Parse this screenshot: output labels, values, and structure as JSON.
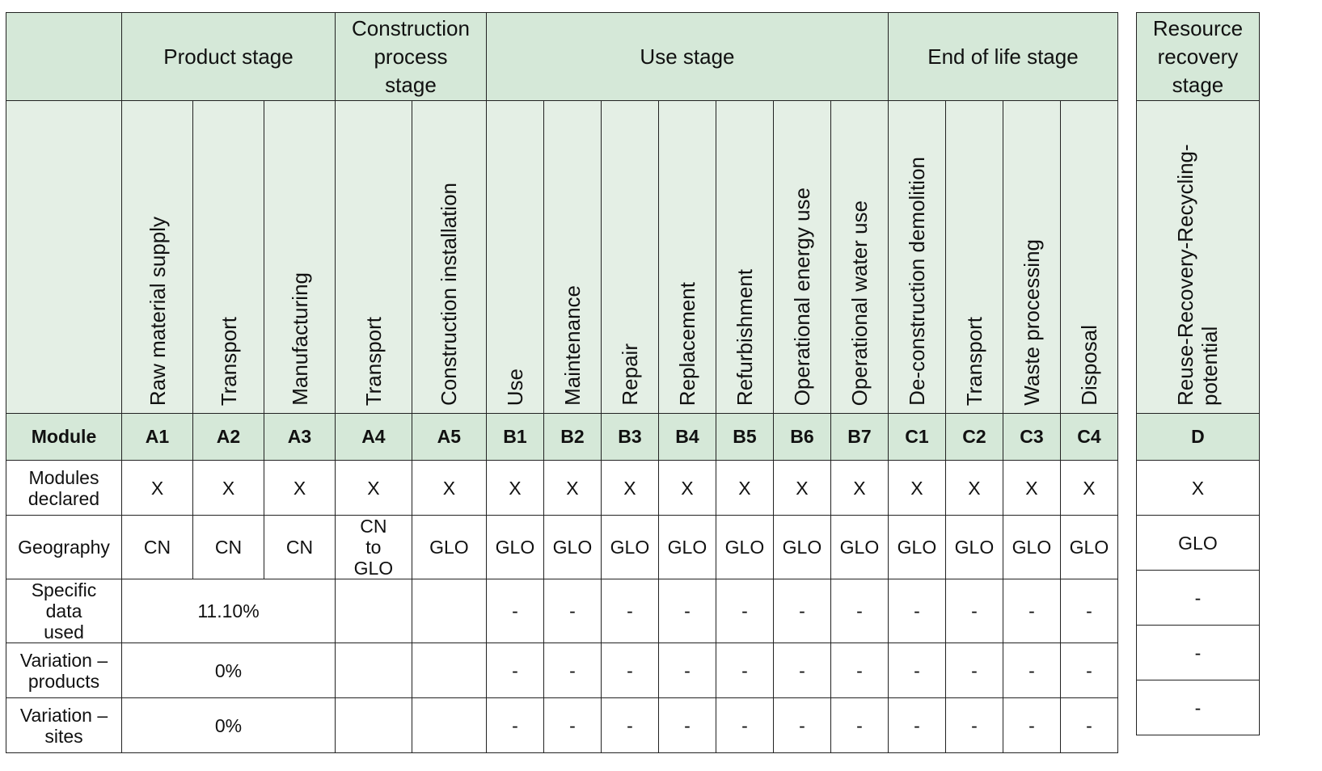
{
  "stages": {
    "product": "Product stage",
    "construction": "Construction process stage",
    "use": "Use stage",
    "end_of_life": "End of life stage",
    "resource_recovery": "Resource recovery stage"
  },
  "column_names": {
    "a1": "Raw material supply",
    "a2": "Transport",
    "a3": "Manufacturing",
    "a4": "Transport",
    "a5": "Construction installation",
    "b1": "Use",
    "b2": "Maintenance",
    "b3": "Repair",
    "b4": "Replacement",
    "b5": "Refurbishment",
    "b6": "Operational energy use",
    "b7": "Operational water use",
    "c1": "De-construction demolition",
    "c2": "Transport",
    "c3": "Waste processing",
    "c4": "Disposal",
    "d": "Reuse-Recovery-Recycling-potential"
  },
  "row_labels": {
    "module": "Module",
    "declared": "Modules declared",
    "geography": "Geography",
    "specific": "Specific data used",
    "var_products": "Variation – products",
    "var_sites": "Variation – sites"
  },
  "modules": {
    "a1": "A1",
    "a2": "A2",
    "a3": "A3",
    "a4": "A4",
    "a5": "A5",
    "b1": "B1",
    "b2": "B2",
    "b3": "B3",
    "b4": "B4",
    "b5": "B5",
    "b6": "B6",
    "b7": "B7",
    "c1": "C1",
    "c2": "C2",
    "c3": "C3",
    "c4": "C4",
    "d": "D"
  },
  "declared": {
    "a1": "X",
    "a2": "X",
    "a3": "X",
    "a4": "X",
    "a5": "X",
    "b1": "X",
    "b2": "X",
    "b3": "X",
    "b4": "X",
    "b5": "X",
    "b6": "X",
    "b7": "X",
    "c1": "X",
    "c2": "X",
    "c3": "X",
    "c4": "X",
    "d": "X"
  },
  "geography": {
    "a1": "CN",
    "a2": "CN",
    "a3": "CN",
    "a4": "CN to GLO",
    "a5": "GLO",
    "b1": "GLO",
    "b2": "GLO",
    "b3": "GLO",
    "b4": "GLO",
    "b5": "GLO",
    "b6": "GLO",
    "b7": "GLO",
    "c1": "GLO",
    "c2": "GLO",
    "c3": "GLO",
    "c4": "GLO",
    "d": "GLO"
  },
  "specific_data": {
    "a1_a3": "11.10%",
    "b1": "-",
    "b2": "-",
    "b3": "-",
    "b4": "-",
    "b5": "-",
    "b6": "-",
    "b7": "-",
    "c1": "-",
    "c2": "-",
    "c3": "-",
    "c4": "-",
    "d": "-"
  },
  "variation_products": {
    "a1_a3": "0%",
    "b1": "-",
    "b2": "-",
    "b3": "-",
    "b4": "-",
    "b5": "-",
    "b6": "-",
    "b7": "-",
    "c1": "-",
    "c2": "-",
    "c3": "-",
    "c4": "-",
    "d": "-"
  },
  "variation_sites": {
    "a1_a3": "0%",
    "b1": "-",
    "b2": "-",
    "b3": "-",
    "b4": "-",
    "b5": "-",
    "b6": "-",
    "b7": "-",
    "c1": "-",
    "c2": "-",
    "c3": "-",
    "c4": "-",
    "d": "-"
  }
}
